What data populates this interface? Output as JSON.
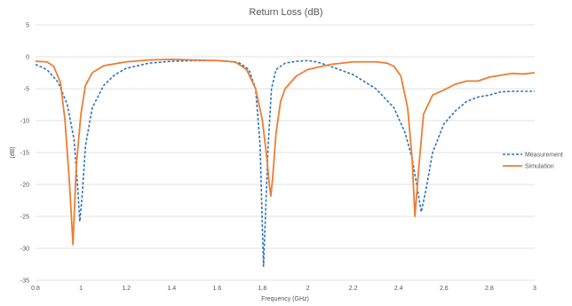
{
  "chart_data": {
    "type": "line",
    "title": "Return Loss (dB)",
    "xlabel": "Frequency (GHz)",
    "ylabel": "(dB)",
    "xlim": [
      0.8,
      3
    ],
    "ylim": [
      -35,
      5
    ],
    "x_ticks": [
      "0.8",
      "1",
      "1.2",
      "1.4",
      "1.6",
      "1.8",
      "2",
      "2.2",
      "2.4",
      "2.6",
      "2.8",
      "3"
    ],
    "y_ticks": [
      "5",
      "0",
      "-5",
      "-10",
      "-15",
      "-20",
      "-25",
      "-30",
      "-35"
    ],
    "grid": true,
    "legend_position": "right",
    "series": [
      {
        "name": "Measurement",
        "color": "#2e75b6",
        "dash": true,
        "points": [
          [
            0.8,
            -1.2
          ],
          [
            0.85,
            -2
          ],
          [
            0.9,
            -4
          ],
          [
            0.94,
            -7.5
          ],
          [
            0.97,
            -13
          ],
          [
            0.985,
            -20
          ],
          [
            0.995,
            -25.8
          ],
          [
            1.005,
            -22
          ],
          [
            1.02,
            -14
          ],
          [
            1.05,
            -8
          ],
          [
            1.1,
            -4.5
          ],
          [
            1.15,
            -2.8
          ],
          [
            1.2,
            -1.8
          ],
          [
            1.3,
            -1.0
          ],
          [
            1.4,
            -0.7
          ],
          [
            1.5,
            -0.6
          ],
          [
            1.6,
            -0.6
          ],
          [
            1.65,
            -0.7
          ],
          [
            1.7,
            -1.0
          ],
          [
            1.74,
            -2
          ],
          [
            1.77,
            -5
          ],
          [
            1.79,
            -14
          ],
          [
            1.8,
            -27
          ],
          [
            1.805,
            -32.8
          ],
          [
            1.81,
            -28
          ],
          [
            1.825,
            -14
          ],
          [
            1.84,
            -5
          ],
          [
            1.86,
            -2
          ],
          [
            1.9,
            -1
          ],
          [
            1.95,
            -0.7
          ],
          [
            2.0,
            -0.6
          ],
          [
            2.04,
            -0.8
          ],
          [
            2.1,
            -1.5
          ],
          [
            2.2,
            -2.8
          ],
          [
            2.3,
            -5
          ],
          [
            2.38,
            -8
          ],
          [
            2.43,
            -12
          ],
          [
            2.46,
            -16
          ],
          [
            2.48,
            -20
          ],
          [
            2.5,
            -24.3
          ],
          [
            2.52,
            -21
          ],
          [
            2.55,
            -15
          ],
          [
            2.6,
            -10.5
          ],
          [
            2.65,
            -8.5
          ],
          [
            2.7,
            -7
          ],
          [
            2.75,
            -6.3
          ],
          [
            2.8,
            -6
          ],
          [
            2.85,
            -5.5
          ],
          [
            2.9,
            -5.4
          ],
          [
            3.0,
            -5.4
          ]
        ]
      },
      {
        "name": "Simulation",
        "color": "#ed7d31",
        "dash": false,
        "points": [
          [
            0.8,
            -0.7
          ],
          [
            0.85,
            -0.8
          ],
          [
            0.88,
            -1.5
          ],
          [
            0.91,
            -4
          ],
          [
            0.93,
            -10
          ],
          [
            0.95,
            -20
          ],
          [
            0.965,
            -29.4
          ],
          [
            0.98,
            -17
          ],
          [
            1.0,
            -9
          ],
          [
            1.02,
            -4.5
          ],
          [
            1.05,
            -2.5
          ],
          [
            1.1,
            -1.4
          ],
          [
            1.2,
            -0.8
          ],
          [
            1.3,
            -0.5
          ],
          [
            1.4,
            -0.4
          ],
          [
            1.5,
            -0.5
          ],
          [
            1.6,
            -0.6
          ],
          [
            1.68,
            -0.8
          ],
          [
            1.73,
            -2
          ],
          [
            1.77,
            -5
          ],
          [
            1.8,
            -10
          ],
          [
            1.82,
            -16
          ],
          [
            1.83,
            -20
          ],
          [
            1.837,
            -21.8
          ],
          [
            1.845,
            -19
          ],
          [
            1.86,
            -12
          ],
          [
            1.88,
            -7
          ],
          [
            1.9,
            -5
          ],
          [
            1.95,
            -3
          ],
          [
            2.0,
            -2
          ],
          [
            2.1,
            -1.2
          ],
          [
            2.2,
            -0.8
          ],
          [
            2.3,
            -0.8
          ],
          [
            2.35,
            -1.0
          ],
          [
            2.38,
            -1.5
          ],
          [
            2.41,
            -3
          ],
          [
            2.44,
            -8
          ],
          [
            2.46,
            -16
          ],
          [
            2.472,
            -25
          ],
          [
            2.49,
            -17
          ],
          [
            2.51,
            -9
          ],
          [
            2.55,
            -6
          ],
          [
            2.6,
            -5.2
          ],
          [
            2.65,
            -4.3
          ],
          [
            2.7,
            -3.8
          ],
          [
            2.75,
            -3.8
          ],
          [
            2.8,
            -3.2
          ],
          [
            2.85,
            -2.9
          ],
          [
            2.9,
            -2.6
          ],
          [
            2.95,
            -2.7
          ],
          [
            3.0,
            -2.5
          ]
        ]
      }
    ]
  }
}
